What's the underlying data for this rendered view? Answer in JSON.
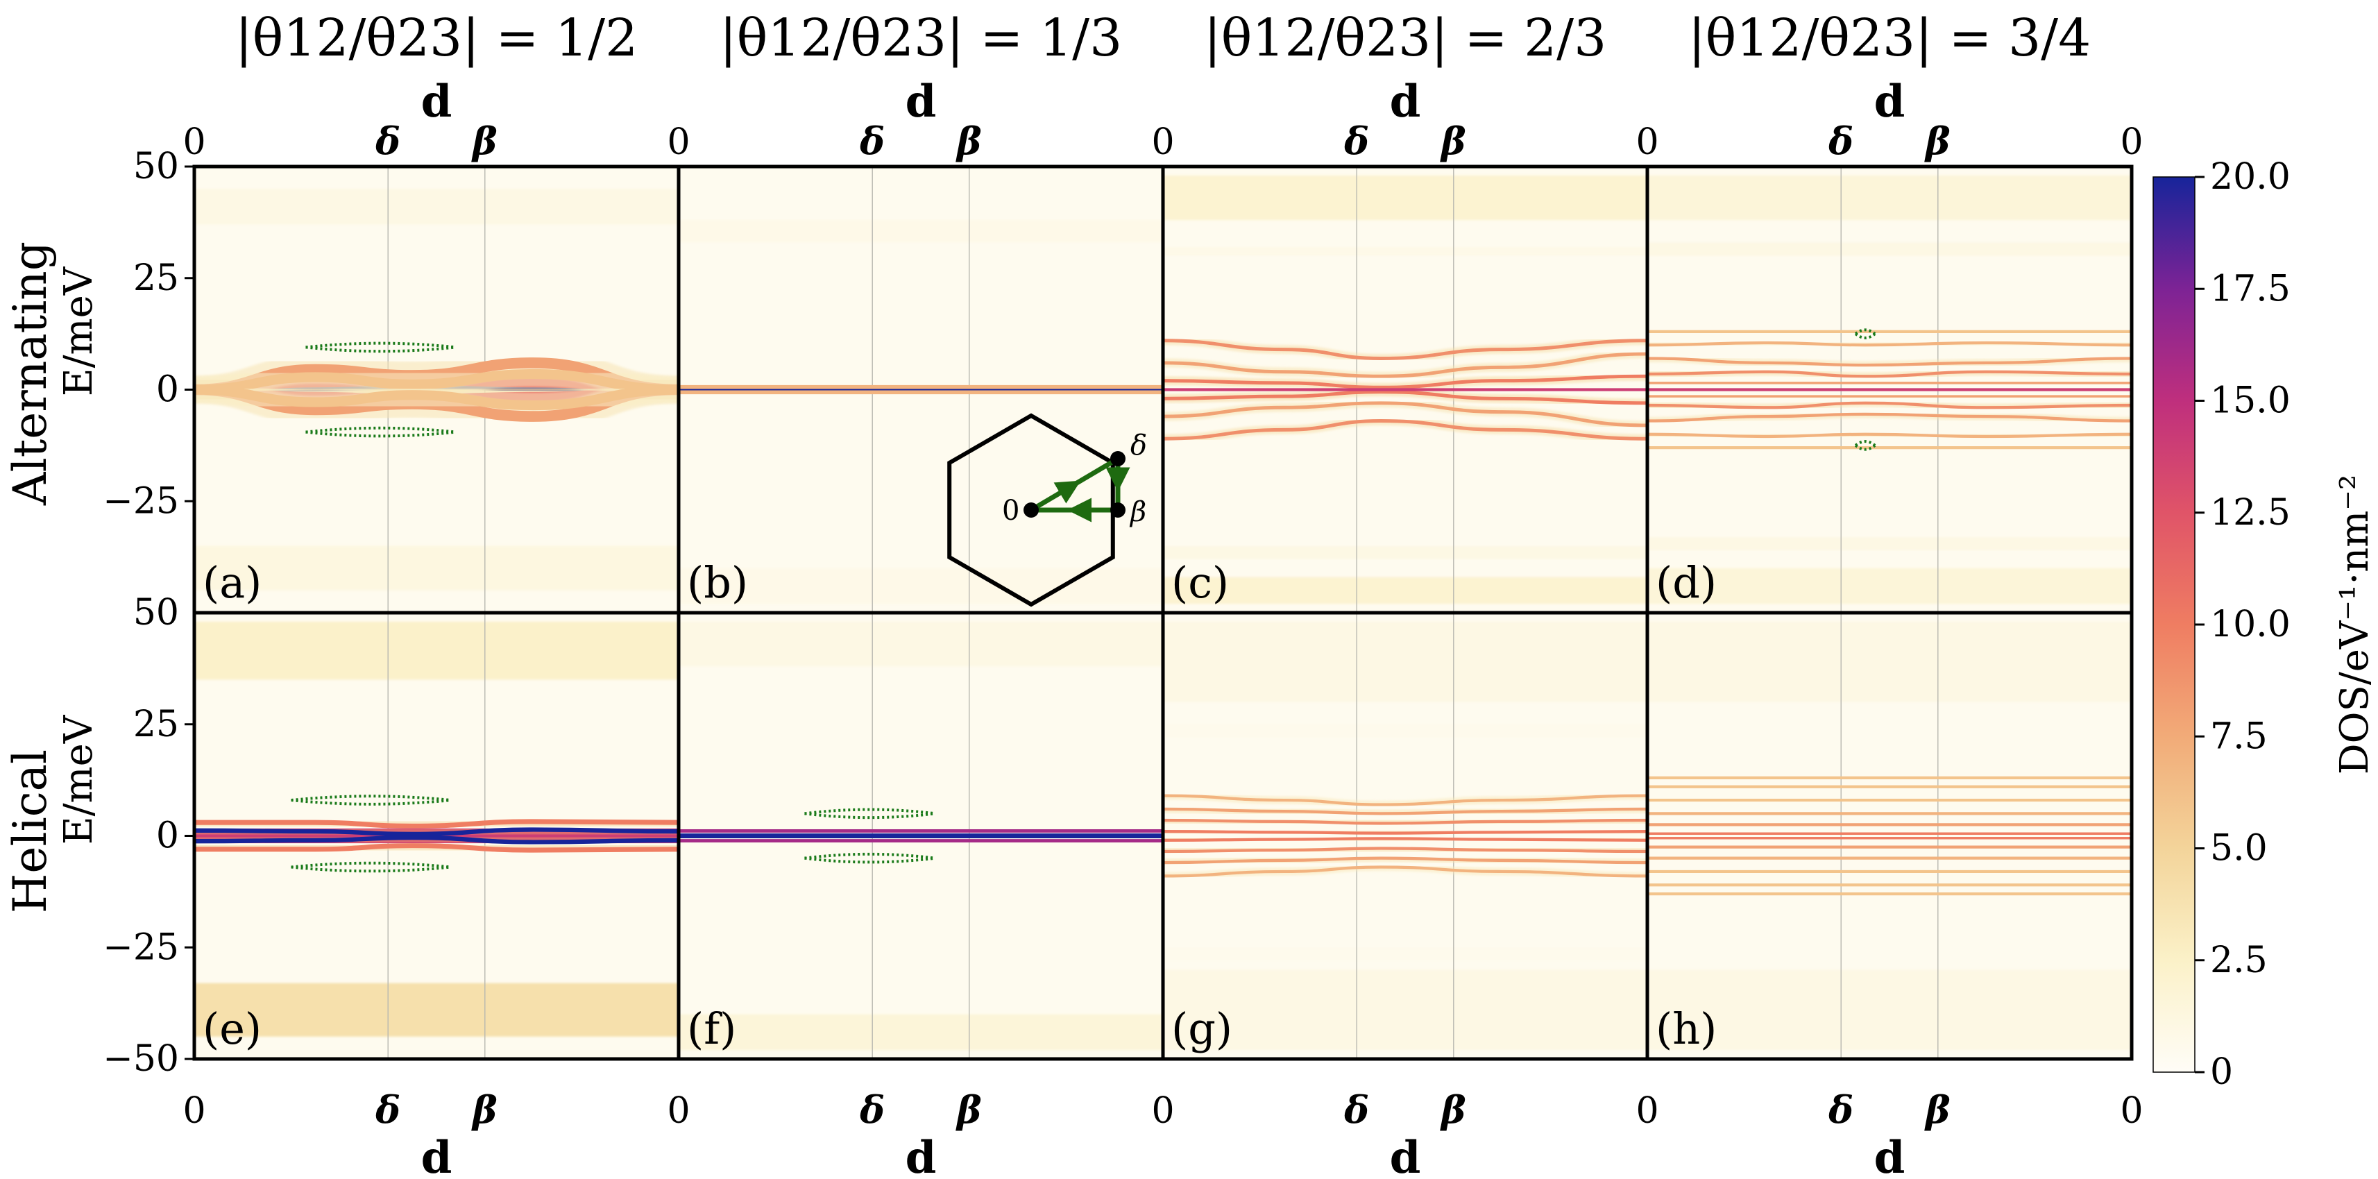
{
  "figure": {
    "column_titles": [
      "|θ12/θ23| = 1/2",
      "|θ12/θ23| = 1/3",
      "|θ12/θ23| = 2/3",
      "|θ12/θ23| = 3/4"
    ],
    "row_labels": [
      "Alternating",
      "Helical"
    ],
    "x_axis_label": "d",
    "y_axis_label": "E/meV",
    "colorbar_label": "DOS/eV⁻¹·nm⁻²",
    "panel_letters": [
      "(a)",
      "(b)",
      "(c)",
      "(d)",
      "(e)",
      "(f)",
      "(g)",
      "(h)"
    ],
    "inset_labels": [
      "0",
      "δ",
      "β"
    ],
    "colors": {
      "frame": "#000000",
      "cmap_low": "#fffdf7",
      "cmap_mid": "#f08060",
      "cmap_high": "#1a2a9a",
      "qp_dots": "#1a7a1a",
      "inset_path": "#1e6a10"
    }
  },
  "chart_data": {
    "type": "heatmap",
    "layout": {
      "rows": 2,
      "cols": 4
    },
    "x_ticks": [
      "0",
      "δ",
      "β",
      "0"
    ],
    "x_tick_positions": [
      0,
      0.4,
      0.6,
      1.0
    ],
    "y_ticks": [
      "50",
      "25",
      "0",
      "−25",
      "−50"
    ],
    "y_tick_values": [
      50,
      25,
      0,
      -25,
      -50
    ],
    "ylim": [
      -50,
      50
    ],
    "colorbar": {
      "min": 0,
      "max": 20,
      "ticks": [
        "0",
        "2.5",
        "5.0",
        "7.5",
        "10.0",
        "12.5",
        "15.0",
        "17.5",
        "20.0"
      ]
    },
    "panels": [
      {
        "id": "a",
        "row": 0,
        "col": 0,
        "background_bands": [
          [
            -45,
            -35,
            0.06
          ],
          [
            37,
            45,
            0.05
          ]
        ],
        "levels": [
          {
            "e": [
              0,
              0.3,
              0.7,
              0.4,
              0
            ],
            "dos": 20,
            "w": 1.2
          },
          {
            "e": [
              0,
              1.5,
              2.0,
              1.5,
              0
            ],
            "dos": 11,
            "w": 1.8
          },
          {
            "e": [
              0,
              -1.5,
              -2.0,
              -1.5,
              0
            ],
            "dos": 11,
            "w": 1.8
          },
          {
            "e": [
              0,
              4.5,
              3.2,
              6.0,
              0
            ],
            "dos": 8,
            "w": 2.2
          },
          {
            "e": [
              0,
              -4.5,
              -3.2,
              -6.0,
              0
            ],
            "dos": 8,
            "w": 2.2
          },
          {
            "e": [
              0,
              2.8,
              1.2,
              3.5,
              0
            ],
            "dos": 6,
            "w": 2.0
          },
          {
            "e": [
              0,
              -2.8,
              -1.2,
              -3.5,
              0
            ],
            "dos": 6,
            "w": 2.0
          }
        ],
        "qp_gaps": [
          {
            "x": [
              0.23,
              0.54
            ],
            "e": [
              9.5,
              9.5,
              -9.5,
              -9.5
            ]
          }
        ]
      },
      {
        "id": "b",
        "row": 0,
        "col": 1,
        "background_bands": [
          [
            -48,
            -40,
            0.04
          ],
          [
            33,
            38,
            0.04
          ]
        ],
        "levels": [
          {
            "e": [
              0,
              0,
              0,
              0,
              0
            ],
            "dos": 20,
            "w": 1.0
          },
          {
            "e": [
              0.6,
              0.6,
              0.6,
              0.6,
              0.6
            ],
            "dos": 7,
            "w": 0.8
          },
          {
            "e": [
              -0.6,
              -0.6,
              -0.6,
              -0.6,
              -0.6
            ],
            "dos": 7,
            "w": 0.8
          }
        ],
        "qp_gaps": [],
        "inset": true
      },
      {
        "id": "c",
        "row": 0,
        "col": 2,
        "background_bands": [
          [
            -48,
            -42,
            0.1
          ],
          [
            38,
            48,
            0.1
          ],
          [
            -38,
            -35,
            0.05
          ],
          [
            30,
            32,
            0.04
          ]
        ],
        "levels": [
          {
            "e": [
              11,
              9,
              7,
              9,
              11
            ],
            "dos": 9,
            "w": 0.7
          },
          {
            "e": [
              -11,
              -9,
              -7,
              -9,
              -11
            ],
            "dos": 9,
            "w": 0.7
          },
          {
            "e": [
              6,
              4,
              3,
              5,
              8
            ],
            "dos": 8,
            "w": 0.7
          },
          {
            "e": [
              -6,
              -4,
              -3,
              -5,
              -8
            ],
            "dos": 8,
            "w": 0.7
          },
          {
            "e": [
              2,
              1.5,
              0.5,
              2,
              3
            ],
            "dos": 10,
            "w": 0.7
          },
          {
            "e": [
              -2,
              -1.5,
              -0.5,
              -2,
              -3
            ],
            "dos": 10,
            "w": 0.7
          },
          {
            "e": [
              0,
              0,
              0,
              0,
              0
            ],
            "dos": 14,
            "w": 0.6
          }
        ],
        "qp_gaps": []
      },
      {
        "id": "d",
        "row": 0,
        "col": 3,
        "background_bands": [
          [
            -48,
            -40,
            0.08
          ],
          [
            38,
            48,
            0.08
          ],
          [
            -36,
            -33,
            0.05
          ],
          [
            30,
            33,
            0.05
          ]
        ],
        "levels": [
          {
            "e": [
              13,
              13,
              13,
              13,
              13
            ],
            "dos": 6,
            "w": 0.6
          },
          {
            "e": [
              -13,
              -13,
              -13,
              -13,
              -13
            ],
            "dos": 6,
            "w": 0.6
          },
          {
            "e": [
              10,
              10.5,
              10,
              10.5,
              10
            ],
            "dos": 7,
            "w": 0.6
          },
          {
            "e": [
              -10,
              -10.5,
              -10,
              -10.5,
              -10
            ],
            "dos": 7,
            "w": 0.6
          },
          {
            "e": [
              7,
              6,
              5.5,
              6,
              7
            ],
            "dos": 8,
            "w": 0.6
          },
          {
            "e": [
              -7,
              -6,
              -5.5,
              -6,
              -7
            ],
            "dos": 8,
            "w": 0.6
          },
          {
            "e": [
              3.5,
              4,
              3,
              4,
              3.5
            ],
            "dos": 9,
            "w": 0.6
          },
          {
            "e": [
              -3.5,
              -4,
              -3,
              -4,
              -3.5
            ],
            "dos": 9,
            "w": 0.6
          },
          {
            "e": [
              1.5,
              1.5,
              1.5,
              1.5,
              1.5
            ],
            "dos": 8,
            "w": 0.5
          },
          {
            "e": [
              -1.5,
              -1.5,
              -1.5,
              -1.5,
              -1.5
            ],
            "dos": 8,
            "w": 0.5
          },
          {
            "e": [
              0,
              0,
              0,
              0,
              0
            ],
            "dos": 14,
            "w": 0.6
          }
        ],
        "qp_gaps": [
          {
            "x": [
              0.43,
              0.47
            ],
            "e": [
              12.5,
              12.5,
              -12.5,
              -12.5
            ]
          }
        ]
      },
      {
        "id": "e",
        "row": 1,
        "col": 0,
        "background_bands": [
          [
            -45,
            -33,
            0.2
          ],
          [
            35,
            48,
            0.12
          ]
        ],
        "levels": [
          {
            "e": [
              0,
              0,
              0,
              0,
              0
            ],
            "dos": 14,
            "w": 3.0
          },
          {
            "e": [
              1.2,
              1.0,
              0.4,
              1.4,
              1.0
            ],
            "dos": 20,
            "w": 0.9
          },
          {
            "e": [
              -1.2,
              -1.0,
              -0.4,
              -1.4,
              -1.0
            ],
            "dos": 20,
            "w": 0.9
          },
          {
            "e": [
              3,
              3,
              2.2,
              3.2,
              3
            ],
            "dos": 10,
            "w": 1.0
          },
          {
            "e": [
              -3,
              -3,
              -2.2,
              -3.2,
              -3
            ],
            "dos": 10,
            "w": 1.0
          }
        ],
        "qp_gaps": [
          {
            "x": [
              0.2,
              0.53
            ],
            "e": [
              8,
              8,
              -7,
              -7
            ]
          }
        ]
      },
      {
        "id": "f",
        "row": 1,
        "col": 1,
        "background_bands": [
          [
            -48,
            -40,
            0.08
          ],
          [
            38,
            48,
            0.05
          ]
        ],
        "levels": [
          {
            "e": [
              0,
              0,
              0,
              0,
              0
            ],
            "dos": 20,
            "w": 1.0
          },
          {
            "e": [
              1.1,
              1.1,
              1.1,
              1.1,
              1.1
            ],
            "dos": 16,
            "w": 0.7
          },
          {
            "e": [
              -1.1,
              -1.1,
              -1.1,
              -1.1,
              -1.1
            ],
            "dos": 16,
            "w": 0.7
          }
        ],
        "qp_gaps": [
          {
            "x": [
              0.26,
              0.53
            ],
            "e": [
              5,
              5,
              -5,
              -5
            ]
          }
        ]
      },
      {
        "id": "g",
        "row": 1,
        "col": 2,
        "background_bands": [
          [
            -48,
            -30,
            0.05
          ],
          [
            30,
            48,
            0.05
          ],
          [
            -28,
            -25,
            0.03
          ],
          [
            22,
            25,
            0.03
          ]
        ],
        "levels": [
          {
            "e": [
              9,
              8,
              7,
              8,
              9
            ],
            "dos": 7,
            "w": 0.6
          },
          {
            "e": [
              -9,
              -8,
              -7,
              -8,
              -9
            ],
            "dos": 7,
            "w": 0.6
          },
          {
            "e": [
              6,
              5.5,
              5,
              5.5,
              6
            ],
            "dos": 8,
            "w": 0.6
          },
          {
            "e": [
              -6,
              -5.5,
              -5,
              -5.5,
              -6
            ],
            "dos": 8,
            "w": 0.6
          },
          {
            "e": [
              3.5,
              3.2,
              2.8,
              3.2,
              3.5
            ],
            "dos": 9,
            "w": 0.6
          },
          {
            "e": [
              -3.5,
              -3.2,
              -2.8,
              -3.2,
              -3.5
            ],
            "dos": 9,
            "w": 0.6
          },
          {
            "e": [
              1,
              0.8,
              0.6,
              0.8,
              1
            ],
            "dos": 10,
            "w": 0.6
          },
          {
            "e": [
              -1,
              -0.8,
              -0.6,
              -0.8,
              -1
            ],
            "dos": 10,
            "w": 0.6
          }
        ],
        "qp_gaps": []
      },
      {
        "id": "h",
        "row": 1,
        "col": 3,
        "background_bands": [
          [
            -48,
            -30,
            0.05
          ],
          [
            30,
            48,
            0.05
          ]
        ],
        "levels": [
          {
            "e": [
              13,
              13,
              13,
              13,
              13
            ],
            "dos": 6,
            "w": 0.6
          },
          {
            "e": [
              -13,
              -13,
              -13,
              -13,
              -13
            ],
            "dos": 6,
            "w": 0.6
          },
          {
            "e": [
              11,
              11,
              11,
              11,
              11
            ],
            "dos": 6,
            "w": 0.6
          },
          {
            "e": [
              -11,
              -11,
              -11,
              -11,
              -11
            ],
            "dos": 6,
            "w": 0.6
          },
          {
            "e": [
              8,
              8,
              8,
              8,
              8
            ],
            "dos": 6,
            "w": 0.6
          },
          {
            "e": [
              -8,
              -8,
              -8,
              -8,
              -8
            ],
            "dos": 6,
            "w": 0.6
          },
          {
            "e": [
              5,
              5,
              5,
              5,
              5
            ],
            "dos": 7,
            "w": 0.6
          },
          {
            "e": [
              -5,
              -5,
              -5,
              -5,
              -5
            ],
            "dos": 7,
            "w": 0.6
          },
          {
            "e": [
              2.5,
              2.5,
              2.5,
              2.5,
              2.5
            ],
            "dos": 8,
            "w": 0.6
          },
          {
            "e": [
              -2.5,
              -2.5,
              -2.5,
              -2.5,
              -2.5
            ],
            "dos": 8,
            "w": 0.6
          },
          {
            "e": [
              0.5,
              0.5,
              0.5,
              0.5,
              0.5
            ],
            "dos": 10,
            "w": 0.5
          },
          {
            "e": [
              -0.5,
              -0.5,
              -0.5,
              -0.5,
              -0.5
            ],
            "dos": 10,
            "w": 0.5
          }
        ],
        "qp_gaps": []
      }
    ]
  }
}
